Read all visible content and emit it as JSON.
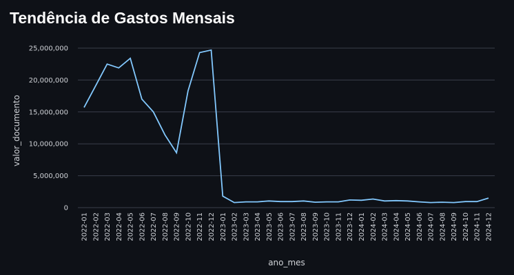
{
  "page": {
    "title": "Tendência de Gastos Mensais"
  },
  "colors": {
    "background": "#0e1117",
    "line": "#83c9ff",
    "grid": "#3a3f4b",
    "text": "#d0d3d8"
  },
  "chart_data": {
    "type": "line",
    "title": "Tendência de Gastos Mensais",
    "xlabel": "ano_mes",
    "ylabel": "valor_documento",
    "ylim": [
      0,
      25000000
    ],
    "yticks": [
      0,
      5000000,
      10000000,
      15000000,
      20000000,
      25000000
    ],
    "ytick_labels": [
      "0",
      "5,000,000",
      "10,000,000",
      "15,000,000",
      "20,000,000",
      "25,000,000"
    ],
    "grid": true,
    "categories": [
      "2022-01",
      "2022-02",
      "2022-03",
      "2022-04",
      "2022-05",
      "2022-06",
      "2022-07",
      "2022-08",
      "2022-09",
      "2022-10",
      "2022-11",
      "2022-12",
      "2023-01",
      "2023-02",
      "2023-03",
      "2023-04",
      "2023-05",
      "2023-06",
      "2023-07",
      "2023-08",
      "2023-09",
      "2023-10",
      "2023-11",
      "2023-12",
      "2024-01",
      "2024-02",
      "2024-03",
      "2024-04",
      "2024-05",
      "2024-06",
      "2024-07",
      "2024-08",
      "2024-09",
      "2024-10",
      "2024-11",
      "2024-12"
    ],
    "series": [
      {
        "values": [
          15700000,
          19100000,
          22500000,
          21900000,
          23400000,
          17000000,
          15000000,
          11400000,
          8600000,
          18300000,
          24300000,
          24700000,
          1800000,
          800000,
          900000,
          900000,
          1050000,
          950000,
          950000,
          1050000,
          850000,
          900000,
          900000,
          1200000,
          1150000,
          1350000,
          1050000,
          1100000,
          1050000,
          900000,
          800000,
          850000,
          800000,
          950000,
          950000,
          1500000
        ]
      }
    ]
  }
}
